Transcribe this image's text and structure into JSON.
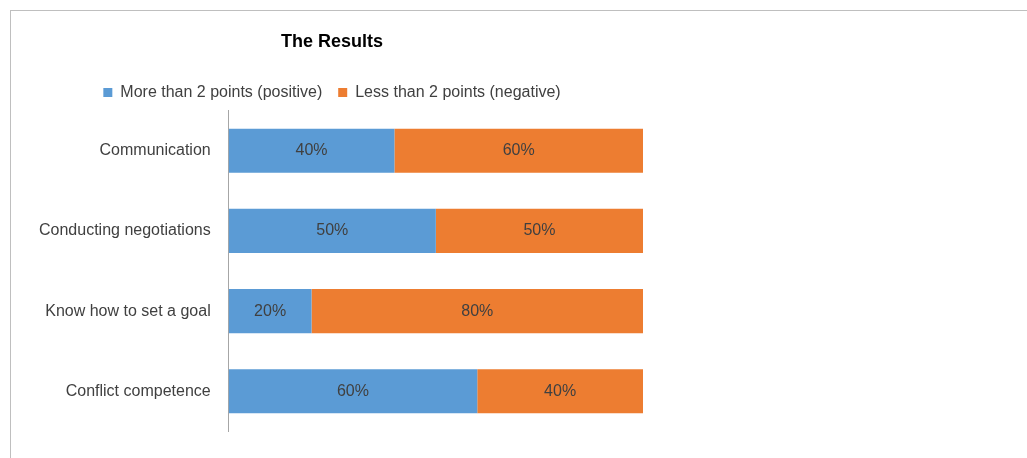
{
  "chart_data": {
    "type": "bar",
    "title": "The Results",
    "orientation": "horizontal",
    "stacked": true,
    "legend": "top",
    "categories": [
      "Communication",
      "Conducting negotiations",
      "Know how to set a goal",
      "Conflict competence"
    ],
    "series": [
      {
        "name": "More than 2 points (positive)",
        "color": "#5b9bd5",
        "values": [
          40,
          50,
          20,
          60
        ],
        "value_labels": [
          "40%",
          "50%",
          "20%",
          "60%"
        ]
      },
      {
        "name": "Less than 2 points (negative)",
        "color": "#ed7d31",
        "values": [
          60,
          50,
          80,
          40
        ],
        "value_labels": [
          "60%",
          "50%",
          "80%",
          "40%"
        ]
      }
    ]
  }
}
